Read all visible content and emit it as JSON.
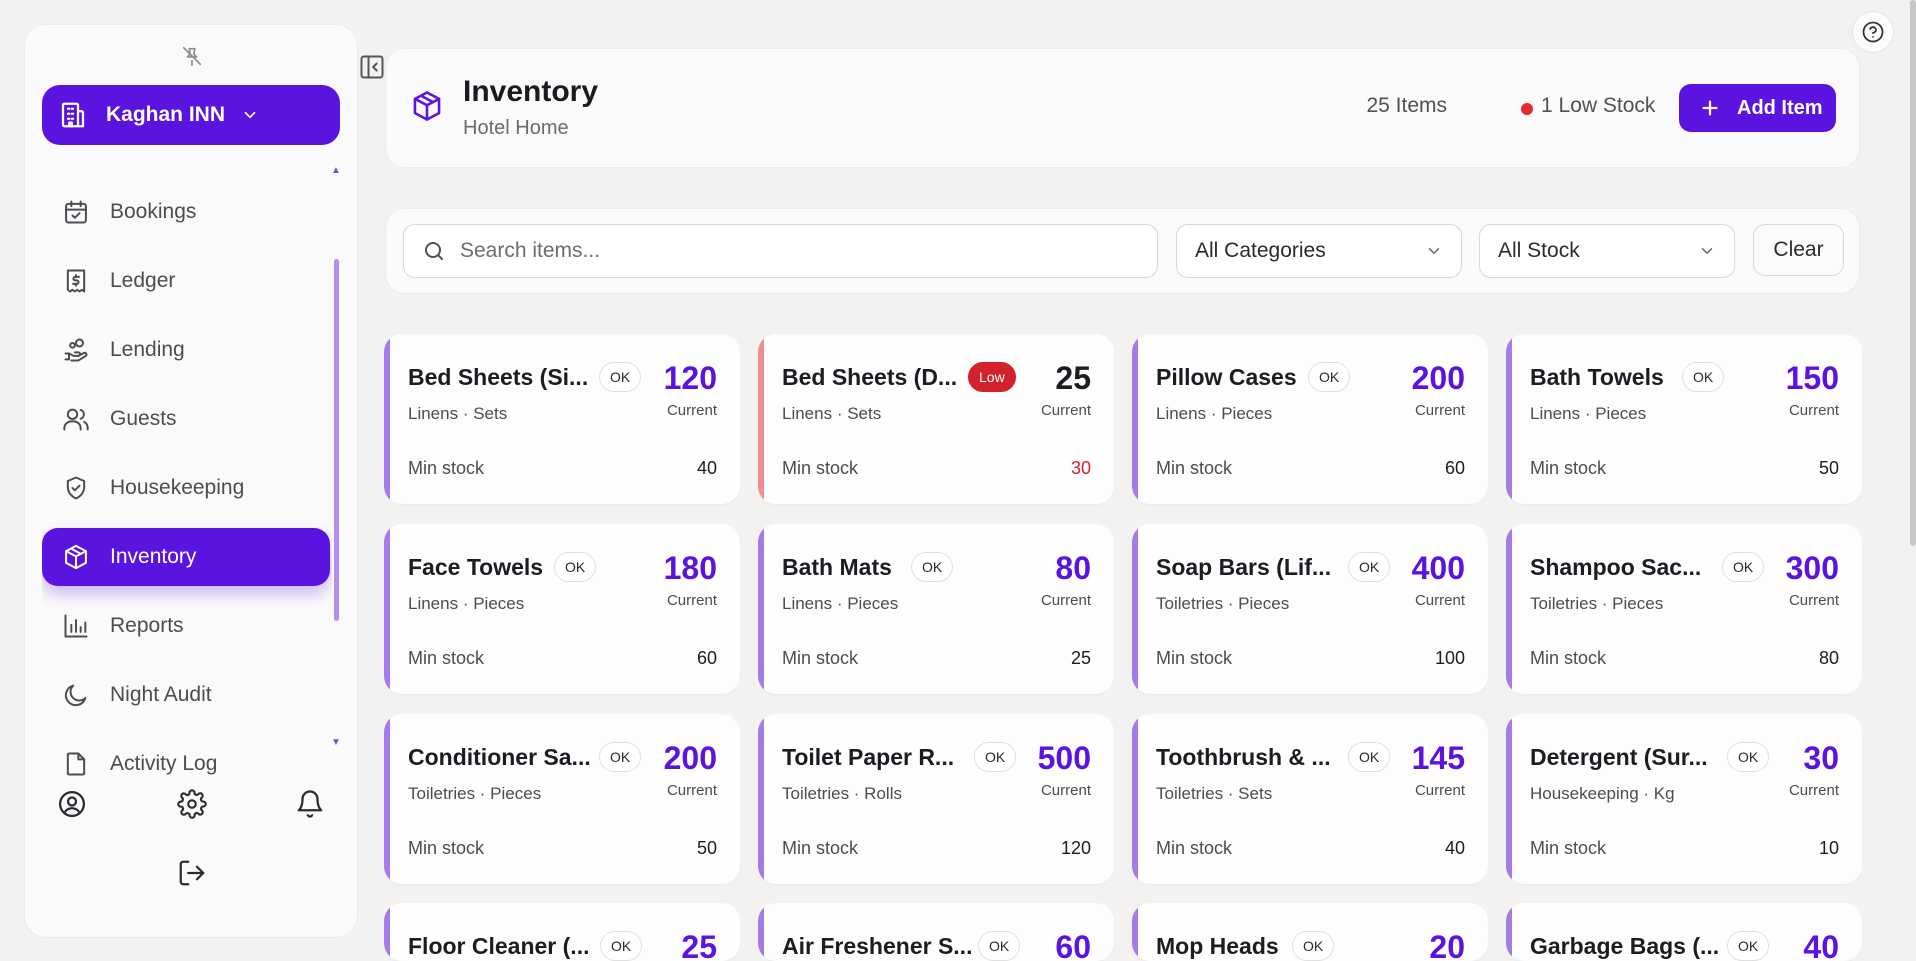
{
  "sidebar": {
    "hotel_name": "Kaghan INN",
    "nav": [
      {
        "label": "Bookings",
        "icon": "calendar-check-icon"
      },
      {
        "label": "Ledger",
        "icon": "receipt-dollar-icon"
      },
      {
        "label": "Lending",
        "icon": "hand-coins-icon"
      },
      {
        "label": "Guests",
        "icon": "users-icon"
      },
      {
        "label": "Housekeeping",
        "icon": "shield-check-icon"
      },
      {
        "label": "Inventory",
        "icon": "package-icon",
        "active": true
      },
      {
        "label": "Reports",
        "icon": "bar-chart-icon"
      },
      {
        "label": "Night Audit",
        "icon": "moon-icon"
      },
      {
        "label": "Activity Log",
        "icon": "file-icon"
      }
    ]
  },
  "header": {
    "title": "Inventory",
    "subtitle": "Hotel Home",
    "items_count": "25 Items",
    "low_stock": "1 Low Stock",
    "add_button": "Add Item"
  },
  "filters": {
    "search_placeholder": "Search items...",
    "category": "All Categories",
    "stock": "All Stock",
    "clear": "Clear"
  },
  "labels": {
    "current": "Current",
    "min_stock": "Min stock"
  },
  "colors": {
    "accent": "#5b13e0",
    "card_accent_ok": "#a57be6",
    "card_accent_low": "#f08d92",
    "low_badge": "#d3222b"
  },
  "items": [
    {
      "name": "Bed Sheets (Si...",
      "status": "OK",
      "current": "120",
      "category": "Linens · Sets",
      "min": "40"
    },
    {
      "name": "Bed Sheets (D...",
      "status": "Low",
      "current": "25",
      "category": "Linens · Sets",
      "min": "30"
    },
    {
      "name": "Pillow Cases",
      "status": "OK",
      "current": "200",
      "category": "Linens · Pieces",
      "min": "60"
    },
    {
      "name": "Bath Towels",
      "status": "OK",
      "current": "150",
      "category": "Linens · Pieces",
      "min": "50"
    },
    {
      "name": "Face Towels",
      "status": "OK",
      "current": "180",
      "category": "Linens · Pieces",
      "min": "60"
    },
    {
      "name": "Bath Mats",
      "status": "OK",
      "current": "80",
      "category": "Linens · Pieces",
      "min": "25"
    },
    {
      "name": "Soap Bars (Lif...",
      "status": "OK",
      "current": "400",
      "category": "Toiletries · Pieces",
      "min": "100"
    },
    {
      "name": "Shampoo Sac...",
      "status": "OK",
      "current": "300",
      "category": "Toiletries · Pieces",
      "min": "80"
    },
    {
      "name": "Conditioner Sa...",
      "status": "OK",
      "current": "200",
      "category": "Toiletries · Pieces",
      "min": "50"
    },
    {
      "name": "Toilet Paper R...",
      "status": "OK",
      "current": "500",
      "category": "Toiletries · Rolls",
      "min": "120"
    },
    {
      "name": "Toothbrush & ...",
      "status": "OK",
      "current": "145",
      "category": "Toiletries · Sets",
      "min": "40"
    },
    {
      "name": "Detergent (Sur...",
      "status": "OK",
      "current": "30",
      "category": "Housekeeping · Kg",
      "min": "10"
    },
    {
      "name": "Floor Cleaner (...",
      "status": "OK",
      "current": "25",
      "category": "",
      "min": ""
    },
    {
      "name": "Air Freshener S...",
      "status": "OK",
      "current": "60",
      "category": "",
      "min": ""
    },
    {
      "name": "Mop Heads",
      "status": "OK",
      "current": "20",
      "category": "",
      "min": ""
    },
    {
      "name": "Garbage Bags (...",
      "status": "OK",
      "current": "40",
      "category": "",
      "min": ""
    }
  ]
}
